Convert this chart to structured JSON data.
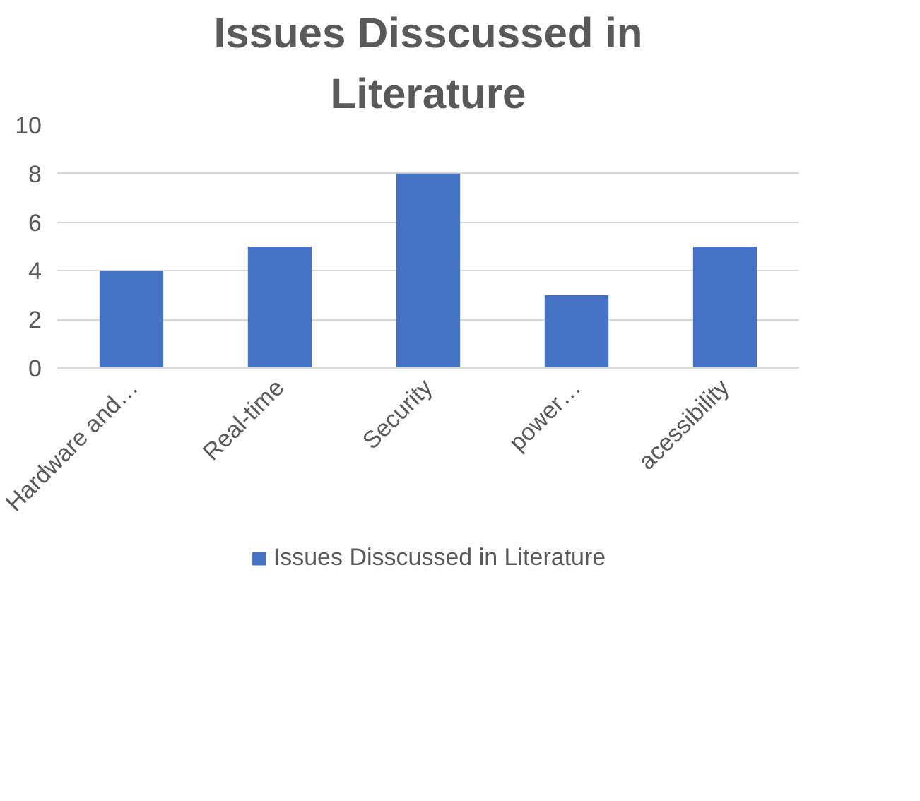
{
  "chart_data": {
    "type": "bar",
    "title": "Issues Disscussed in Literature",
    "categories": [
      "Hardware and…",
      "Real-time",
      "Security",
      "power…",
      "acessibility"
    ],
    "series": [
      {
        "name": "Issues Disscussed in Literature",
        "color": "#4472c4",
        "values": [
          4,
          5,
          8,
          3,
          5
        ]
      }
    ],
    "ylim": [
      0,
      10
    ],
    "yticks": [
      0,
      2,
      4,
      6,
      8,
      10
    ],
    "grid": "y",
    "legend": "bottom"
  }
}
